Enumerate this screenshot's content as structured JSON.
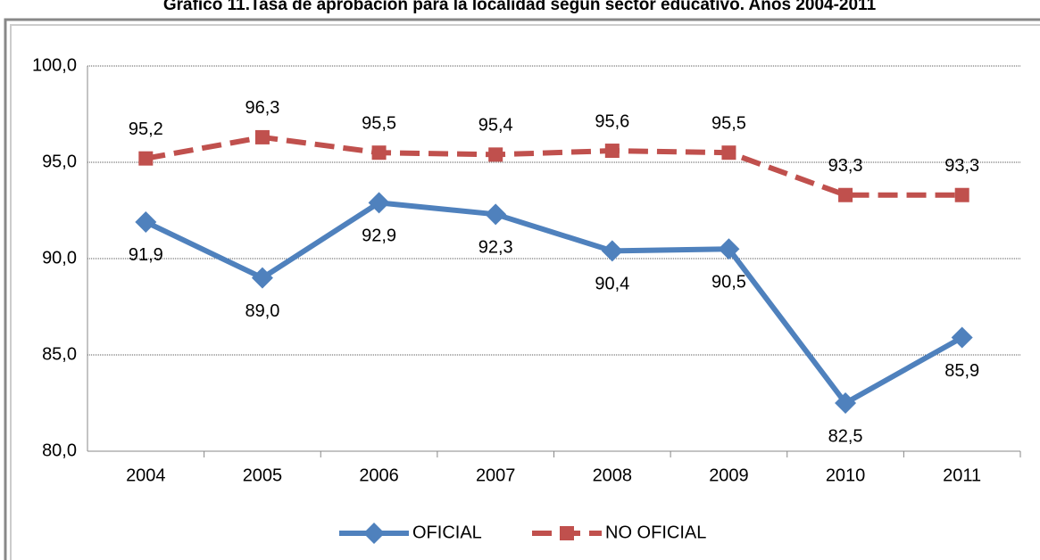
{
  "chart_data": {
    "type": "line",
    "title": "Gráfico 11.Tasa de aprobación para la localidad según sector educativo. Años 2004-2011",
    "categories": [
      "2004",
      "2005",
      "2006",
      "2007",
      "2008",
      "2009",
      "2010",
      "2011"
    ],
    "series": [
      {
        "name": "OFICIAL",
        "color": "#4f81bd",
        "marker": "diamond",
        "dashed": false,
        "values": [
          91.9,
          89.0,
          92.9,
          92.3,
          90.4,
          90.5,
          82.5,
          85.9
        ],
        "value_labels": [
          "91,9",
          "89,0",
          "92,9",
          "92,3",
          "90,4",
          "90,5",
          "82,5",
          "85,9"
        ]
      },
      {
        "name": "NO OFICIAL",
        "color": "#c0504d",
        "marker": "square",
        "dashed": true,
        "values": [
          95.2,
          96.3,
          95.5,
          95.4,
          95.6,
          95.5,
          93.3,
          93.3
        ],
        "value_labels": [
          "95,2",
          "96,3",
          "95,5",
          "95,4",
          "95,6",
          "95,5",
          "93,3",
          "93,3"
        ]
      }
    ],
    "ylim": [
      80,
      100
    ],
    "yticks": [
      {
        "value": 80,
        "label": "80,0"
      },
      {
        "value": 85,
        "label": "85,0"
      },
      {
        "value": 90,
        "label": "90,0"
      },
      {
        "value": 95,
        "label": "95,0"
      },
      {
        "value": 100,
        "label": "100,0"
      }
    ],
    "grid": true,
    "legend": "bottom"
  }
}
